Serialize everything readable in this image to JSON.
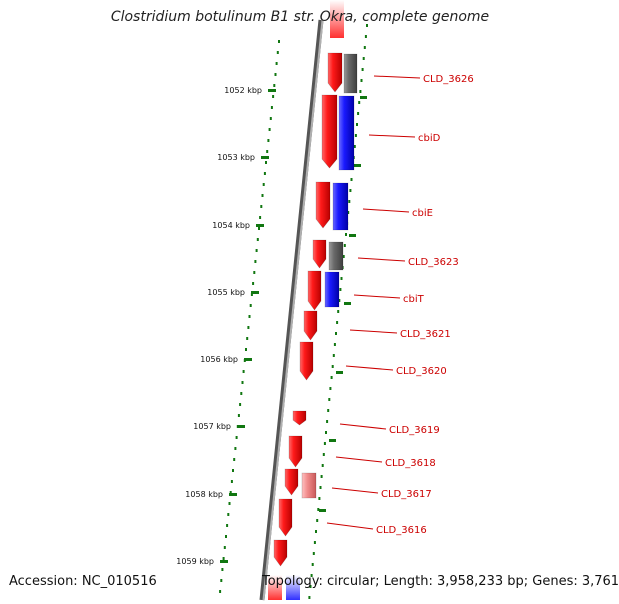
{
  "title": "Clostridium botulinum B1 str. Okra, complete genome",
  "footer": {
    "accession": "Accession: NC_010516",
    "summary": "Topology: circular; Length: 3,958,233 bp; Genes: 3,761"
  },
  "colors": {
    "forward_gene": "#ee1111",
    "reverse_gene": "#1111ee",
    "other_gene": "#666666",
    "pseudo_gene": "#f08080",
    "label": "#cc0000",
    "tick": "#117711",
    "backbone": "#888888"
  },
  "ruler_ticks": [
    "1052 kbp",
    "1053 kbp",
    "1054 kbp",
    "1055 kbp",
    "1056 kbp",
    "1057 kbp",
    "1058 kbp",
    "1059 kbp"
  ],
  "gene_labels": [
    "CLD_3626",
    "cbiD",
    "cbiE",
    "CLD_3623",
    "cbiT",
    "CLD_3621",
    "CLD_3620",
    "CLD_3619",
    "CLD_3618",
    "CLD_3617",
    "CLD_3616"
  ]
}
